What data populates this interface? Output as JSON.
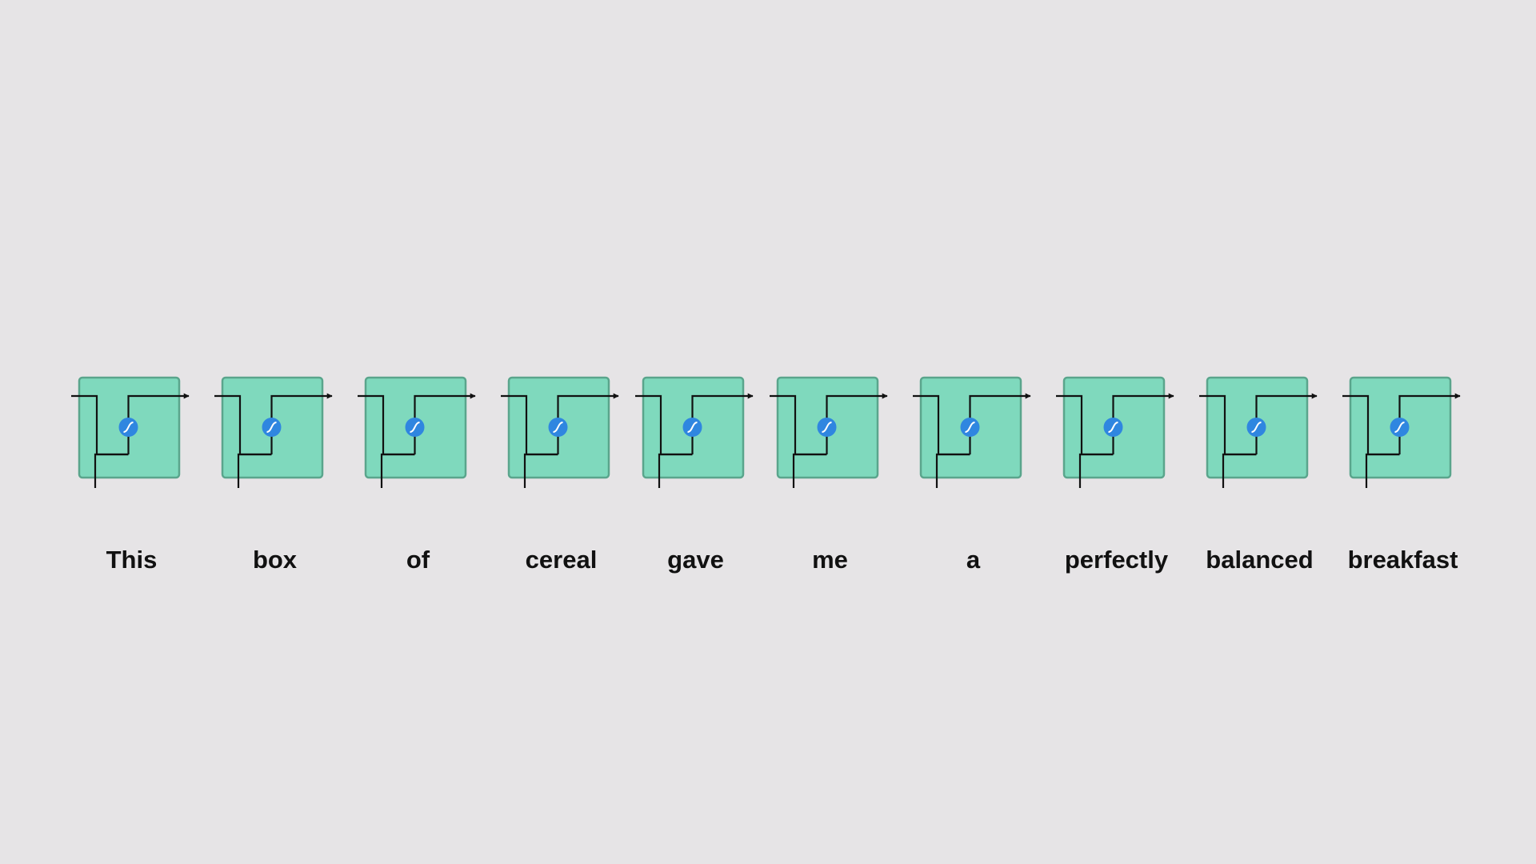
{
  "diagram": {
    "type": "recurrent-cell-sequence",
    "colors": {
      "background": "#e6e4e6",
      "cell_fill": "#7fd9bd",
      "cell_stroke": "#5aa58c",
      "wire": "#111111",
      "activation_node": "#2f86e0",
      "activation_symbol": "#ffffff",
      "label": "#111111"
    },
    "cell_count": 10,
    "words": [
      "This",
      "box",
      "of",
      "cereal",
      "gave",
      "me",
      "a",
      "perfectly",
      "balanced",
      "breakfast"
    ],
    "activation_icon": "tanh-sigmoid-icon"
  }
}
